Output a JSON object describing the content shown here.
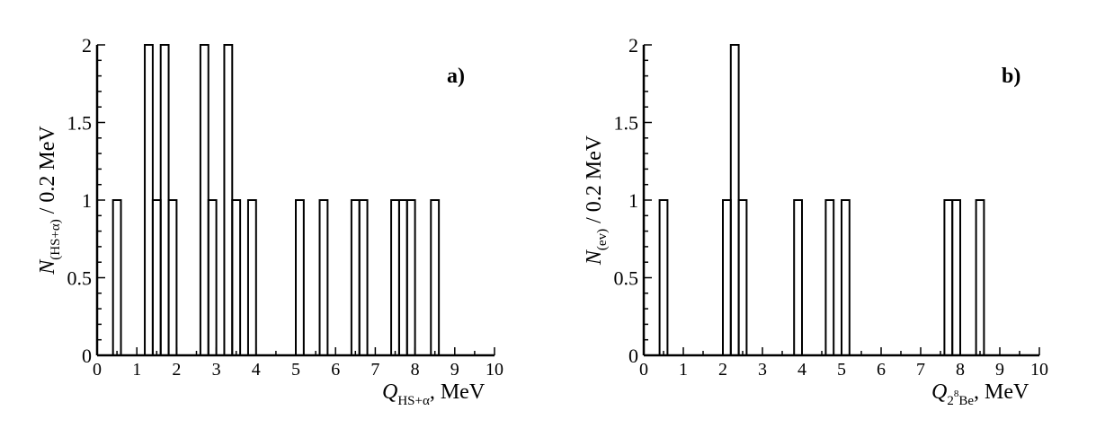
{
  "chart_data": [
    {
      "type": "bar",
      "panel_label": "a)",
      "bin_width": 0.2,
      "xlim": [
        0,
        10
      ],
      "ylim": [
        0,
        2
      ],
      "xticks": [
        "0",
        "1",
        "2",
        "3",
        "4",
        "5",
        "6",
        "7",
        "8",
        "9",
        "10"
      ],
      "yticks": [
        "0",
        "0.5",
        "1",
        "1.5",
        "2"
      ],
      "ylabel": {
        "main": "N",
        "sub": "(HS+α)",
        "rest": " / 0.2 MeV"
      },
      "xlabel": {
        "main": "Q",
        "sub": "HS+α",
        "sup": "",
        "sub2": "",
        "rest": ", MeV"
      },
      "bins": [
        {
          "x": 0.4,
          "value": 1
        },
        {
          "x": 1.2,
          "value": 2
        },
        {
          "x": 1.4,
          "value": 1
        },
        {
          "x": 1.6,
          "value": 2
        },
        {
          "x": 1.8,
          "value": 1
        },
        {
          "x": 2.6,
          "value": 2
        },
        {
          "x": 2.8,
          "value": 1
        },
        {
          "x": 3.2,
          "value": 2
        },
        {
          "x": 3.4,
          "value": 1
        },
        {
          "x": 3.8,
          "value": 1
        },
        {
          "x": 5.0,
          "value": 1
        },
        {
          "x": 5.6,
          "value": 1
        },
        {
          "x": 6.4,
          "value": 1
        },
        {
          "x": 6.6,
          "value": 1
        },
        {
          "x": 7.4,
          "value": 1
        },
        {
          "x": 7.6,
          "value": 1
        },
        {
          "x": 7.8,
          "value": 1
        },
        {
          "x": 8.4,
          "value": 1
        }
      ],
      "grid": false
    },
    {
      "type": "bar",
      "panel_label": "b)",
      "bin_width": 0.2,
      "xlim": [
        0,
        10
      ],
      "ylim": [
        0,
        2
      ],
      "xticks": [
        "0",
        "1",
        "2",
        "3",
        "4",
        "5",
        "6",
        "7",
        "8",
        "9",
        "10"
      ],
      "yticks": [
        "0",
        "0.5",
        "1",
        "1.5",
        "2"
      ],
      "ylabel": {
        "main": "N",
        "sub": "(ev)",
        "rest": " / 0.2 MeV"
      },
      "xlabel": {
        "main": "Q",
        "sub": "2",
        "sup": "8",
        "sub2": "Be",
        "rest": ", MeV"
      },
      "bins": [
        {
          "x": 0.4,
          "value": 1
        },
        {
          "x": 2.0,
          "value": 1
        },
        {
          "x": 2.2,
          "value": 2
        },
        {
          "x": 2.4,
          "value": 1
        },
        {
          "x": 3.8,
          "value": 1
        },
        {
          "x": 4.6,
          "value": 1
        },
        {
          "x": 5.0,
          "value": 1
        },
        {
          "x": 7.6,
          "value": 1
        },
        {
          "x": 7.8,
          "value": 1
        },
        {
          "x": 8.4,
          "value": 1
        }
      ],
      "grid": false
    }
  ]
}
